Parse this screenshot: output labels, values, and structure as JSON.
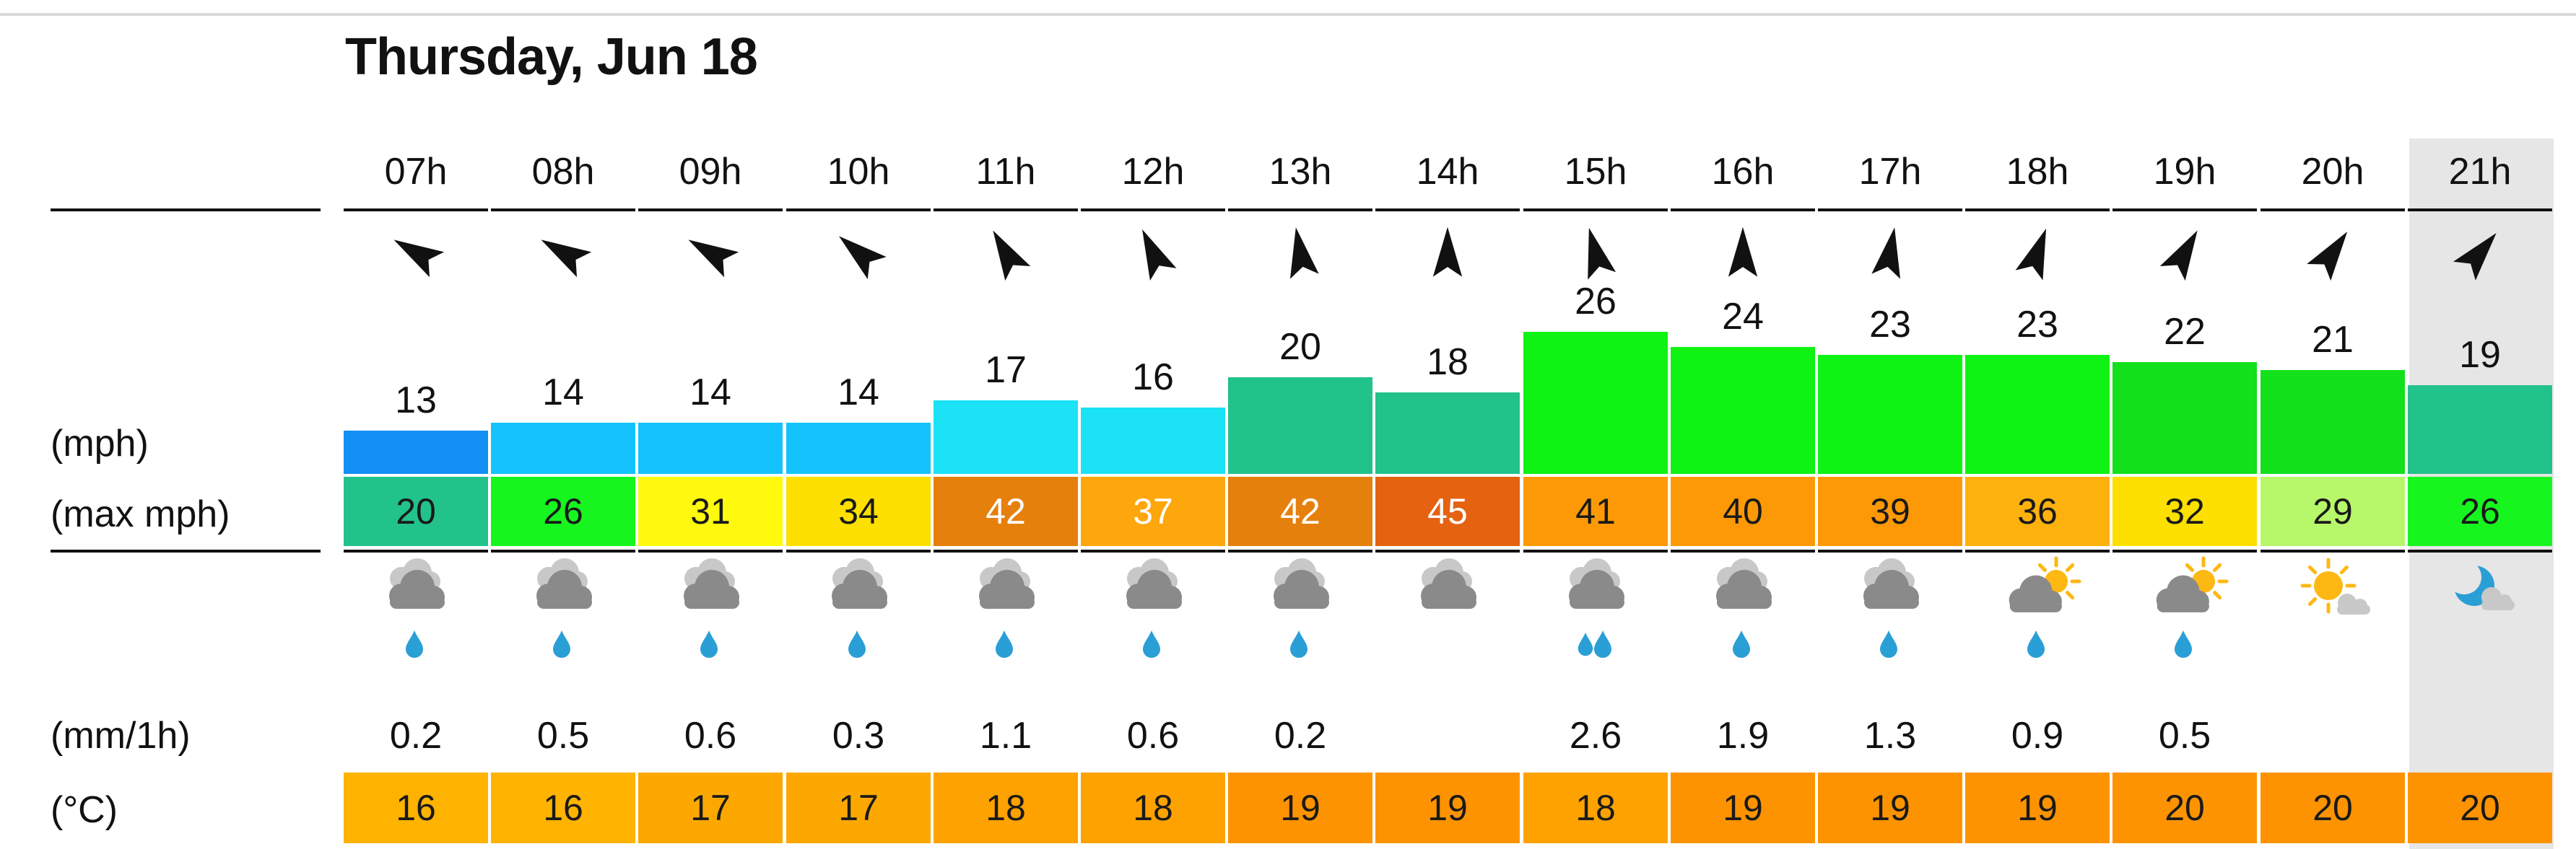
{
  "date_title": "Thursday, Jun 18",
  "labels": {
    "wind": "(mph)",
    "gust": "(max mph)",
    "rain": "(mm/1h)",
    "temp": "(°C)"
  },
  "hours": [
    {
      "hour": "07h",
      "dir_deg": 300,
      "wind": "13",
      "wind_level": 0.13,
      "wind_color": "#1290f5",
      "gust": "20",
      "gust_color": "#22c28b",
      "weather": "cloud-rain",
      "rain": "0.2",
      "temp": "16",
      "temp_color": "#fdb300"
    },
    {
      "hour": "08h",
      "dir_deg": 300,
      "wind": "14",
      "wind_level": 0.14,
      "wind_color": "#14c3fb",
      "gust": "26",
      "gust_color": "#17f51f",
      "weather": "cloud-rain",
      "rain": "0.5",
      "temp": "16",
      "temp_color": "#fdb300"
    },
    {
      "hour": "09h",
      "dir_deg": 300,
      "wind": "14",
      "wind_level": 0.14,
      "wind_color": "#14c3fb",
      "gust": "31",
      "gust_color": "#fff90e",
      "weather": "cloud-rain",
      "rain": "0.6",
      "temp": "17",
      "temp_color": "#fca800"
    },
    {
      "hour": "10h",
      "dir_deg": 310,
      "wind": "14",
      "wind_level": 0.14,
      "wind_color": "#14c3fb",
      "gust": "34",
      "gust_color": "#fee000",
      "weather": "cloud-rain",
      "rain": "0.3",
      "temp": "17",
      "temp_color": "#fca800"
    },
    {
      "hour": "11h",
      "dir_deg": 330,
      "wind": "17",
      "wind_level": 0.17,
      "wind_color": "#1ce2f5",
      "gust": "42",
      "gust_color": "#e6800c",
      "weather": "cloud-rain",
      "rain": "1.1",
      "temp": "18",
      "temp_color": "#fda200"
    },
    {
      "hour": "12h",
      "dir_deg": 335,
      "wind": "16",
      "wind_level": 0.16,
      "wind_color": "#1ce2f5",
      "gust": "37",
      "gust_color": "#fda70c",
      "weather": "cloud-rain",
      "rain": "0.6",
      "temp": "18",
      "temp_color": "#fda200"
    },
    {
      "hour": "13h",
      "dir_deg": 350,
      "wind": "20",
      "wind_level": 0.2,
      "wind_color": "#22c28b",
      "gust": "42",
      "gust_color": "#e6800c",
      "weather": "cloud-rain",
      "rain": "0.2",
      "temp": "19",
      "temp_color": "#fd9300"
    },
    {
      "hour": "14h",
      "dir_deg": 0,
      "wind": "18",
      "wind_level": 0.18,
      "wind_color": "#22c28b",
      "gust": "45",
      "gust_color": "#e46210",
      "weather": "cloud",
      "rain": "",
      "temp": "19",
      "temp_color": "#fd9300"
    },
    {
      "hour": "15h",
      "dir_deg": 345,
      "wind": "26",
      "wind_level": 0.26,
      "wind_color": "#0ef313",
      "gust": "41",
      "gust_color": "#fd9906",
      "weather": "cloud-heavy-rain",
      "rain": "2.6",
      "temp": "18",
      "temp_color": "#fda200"
    },
    {
      "hour": "16h",
      "dir_deg": 0,
      "wind": "24",
      "wind_level": 0.24,
      "wind_color": "#0ef313",
      "gust": "40",
      "gust_color": "#fd9906",
      "weather": "cloud-rain",
      "rain": "1.9",
      "temp": "19",
      "temp_color": "#fd9300"
    },
    {
      "hour": "17h",
      "dir_deg": 10,
      "wind": "23",
      "wind_level": 0.23,
      "wind_color": "#0ef313",
      "gust": "39",
      "gust_color": "#fd9906",
      "weather": "cloud-rain",
      "rain": "1.3",
      "temp": "19",
      "temp_color": "#fd9300"
    },
    {
      "hour": "18h",
      "dir_deg": 20,
      "wind": "23",
      "wind_level": 0.23,
      "wind_color": "#0ef313",
      "gust": "36",
      "gust_color": "#fdb10c",
      "weather": "sun-cloud-rain",
      "rain": "0.9",
      "temp": "19",
      "temp_color": "#fd9300"
    },
    {
      "hour": "19h",
      "dir_deg": 30,
      "wind": "22",
      "wind_level": 0.22,
      "wind_color": "#12e11c",
      "gust": "32",
      "gust_color": "#fee000",
      "weather": "sun-cloud-rain",
      "rain": "0.5",
      "temp": "20",
      "temp_color": "#fd9300"
    },
    {
      "hour": "20h",
      "dir_deg": 35,
      "wind": "21",
      "wind_level": 0.21,
      "wind_color": "#12e11c",
      "gust": "29",
      "gust_color": "#b7f86a",
      "weather": "sun-cloud",
      "rain": "",
      "temp": "20",
      "temp_color": "#fd9300"
    },
    {
      "hour": "21h",
      "dir_deg": 40,
      "wind": "19",
      "wind_level": 0.19,
      "wind_color": "#22c28b",
      "gust": "26",
      "gust_color": "#17f51f",
      "weather": "moon-cloud",
      "rain": "",
      "temp": "20",
      "temp_color": "#fd9300"
    }
  ]
}
